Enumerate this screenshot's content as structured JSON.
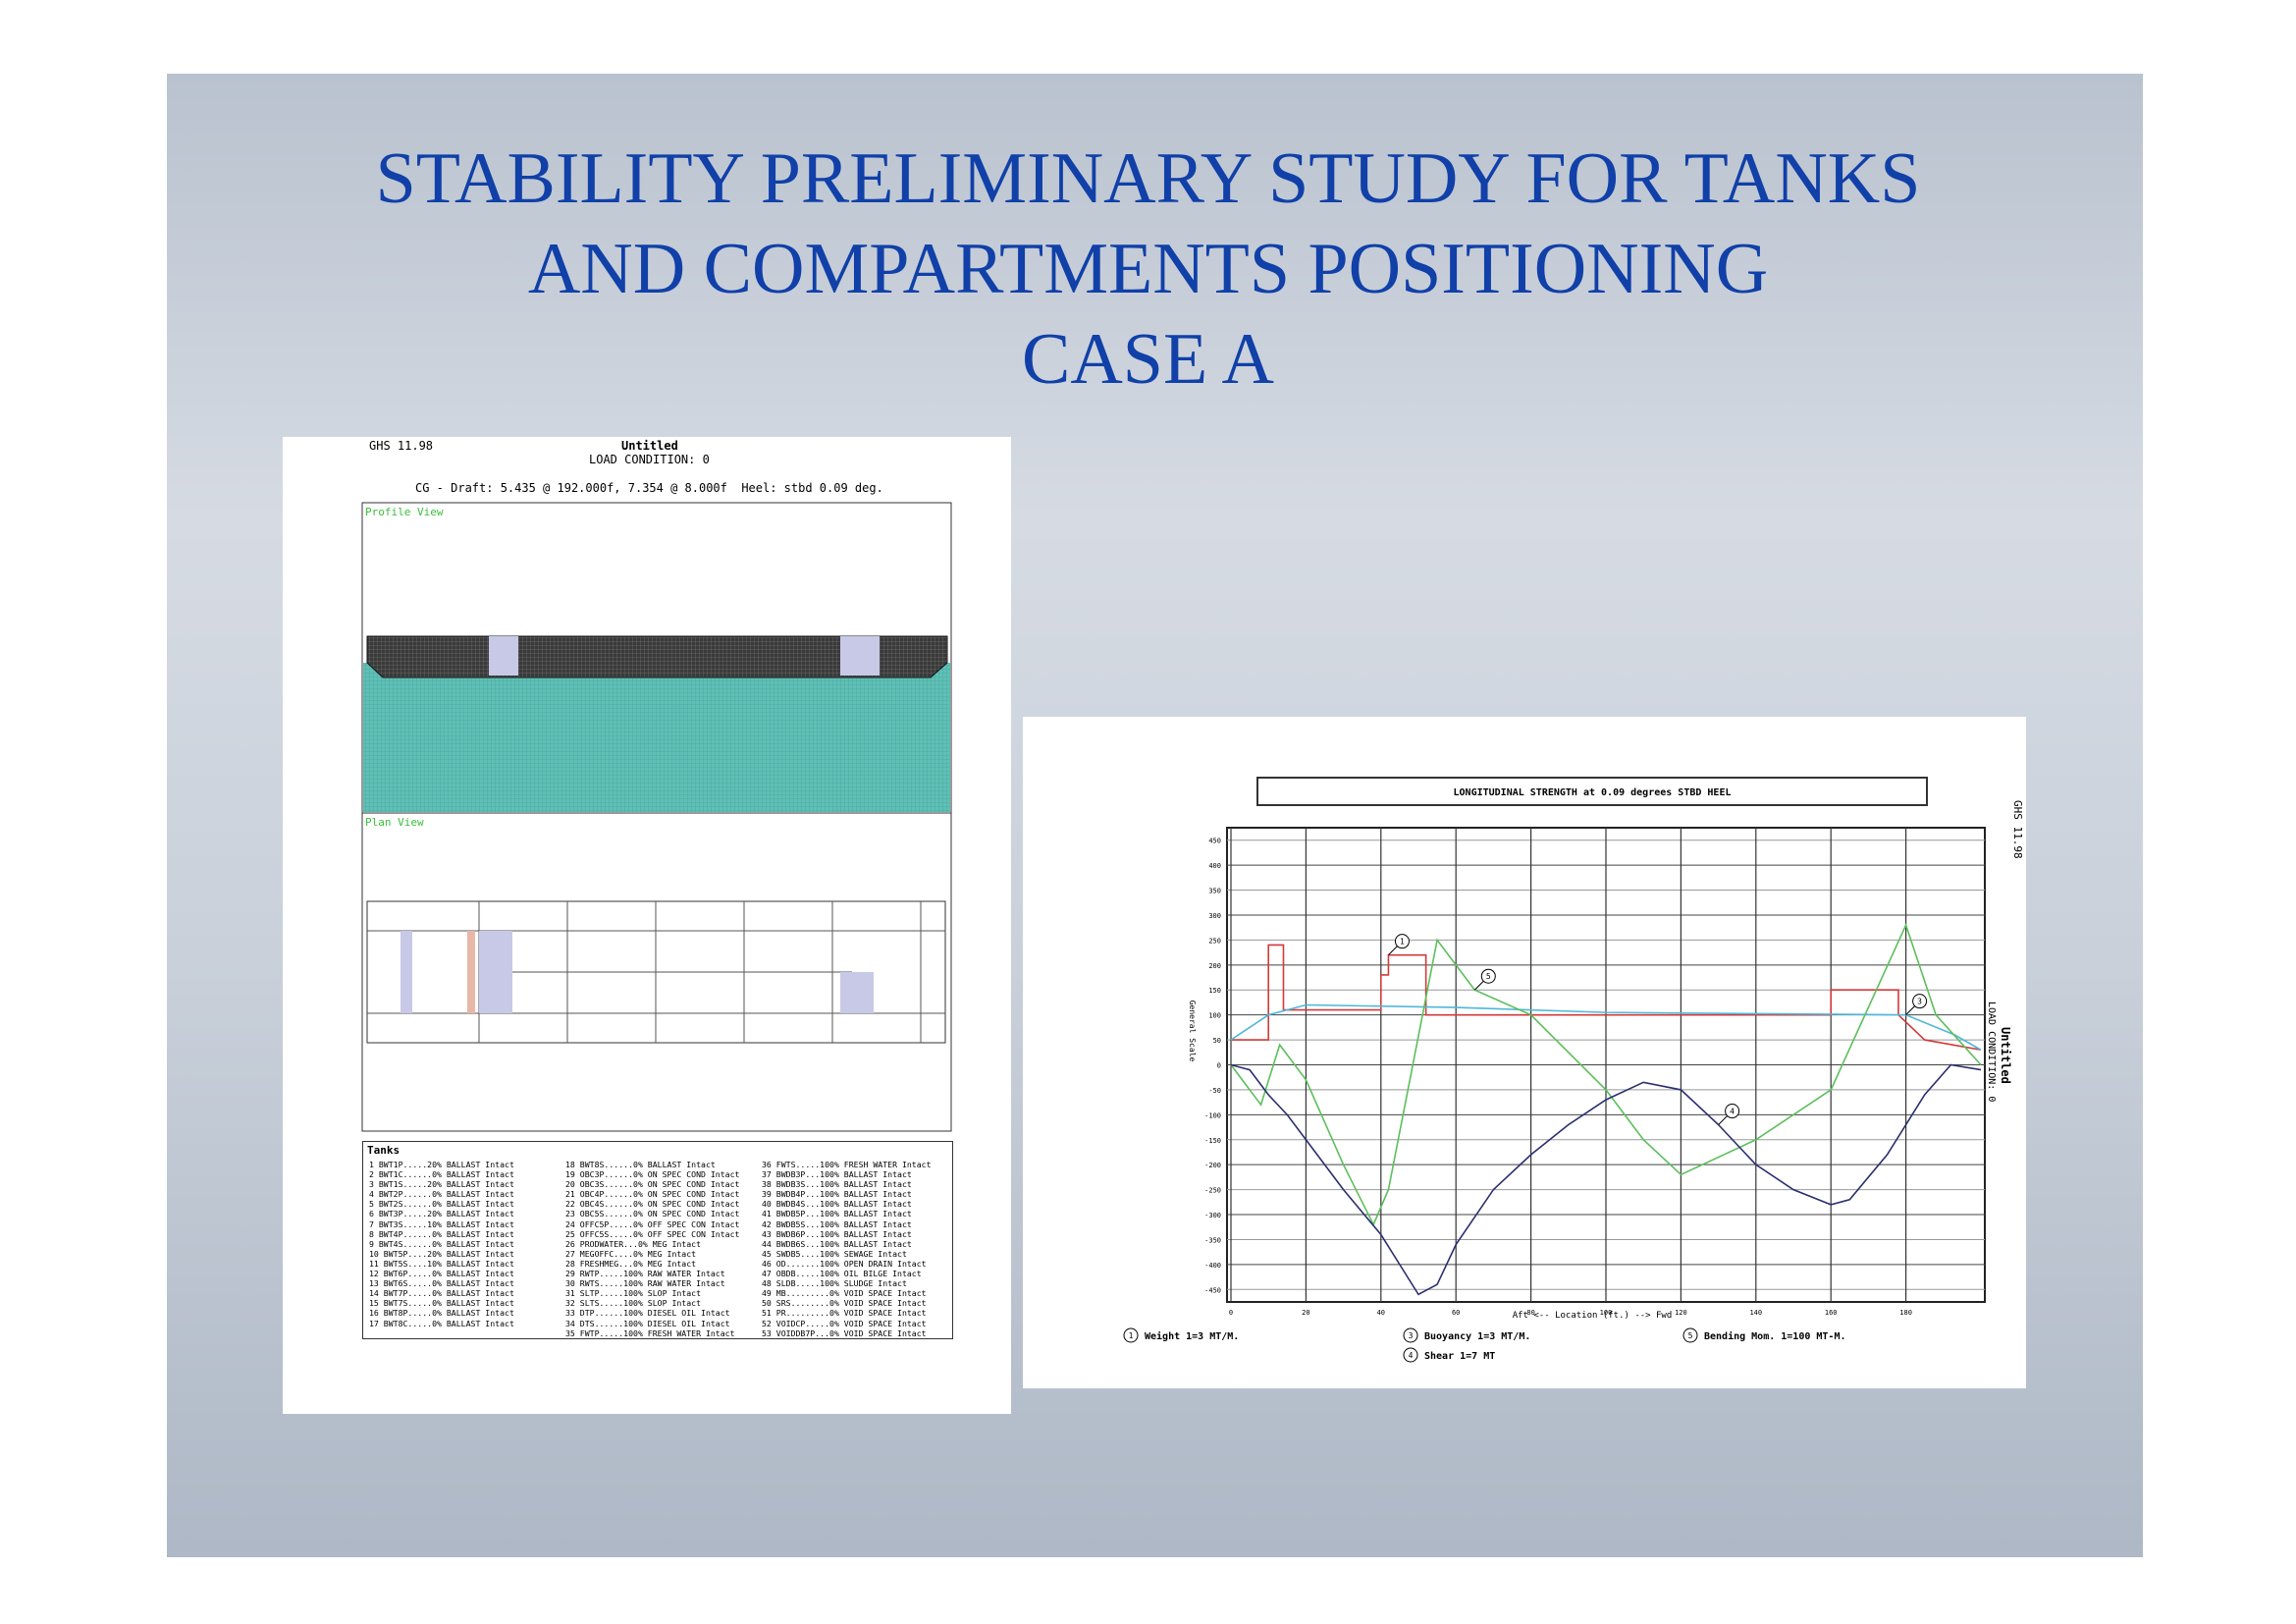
{
  "slide": {
    "title_lines": [
      "STABILITY PRELIMINARY STUDY FOR TANKS",
      "AND COMPARTMENTS  POSITIONING",
      "CASE A"
    ]
  },
  "left_panel": {
    "program": "GHS 11.98",
    "name": "Untitled",
    "condition": "LOAD CONDITION: 0",
    "cg_line": "CG - Draft: 5.435 @ 192.000f, 7.354 @ 8.000f  Heel: stbd 0.09 deg.",
    "profile_label": "Profile View",
    "plan_label": "Plan View",
    "tanks_heading": "Tanks",
    "tank_columns": [
      [
        "1 BWT1P.....20% BALLAST Intact",
        "2 BWT1C......0% BALLAST Intact",
        "3 BWT1S.....20% BALLAST Intact",
        "4 BWT2P......0% BALLAST Intact",
        "5 BWT2S......0% BALLAST Intact",
        "6 BWT3P.....20% BALLAST Intact",
        "7 BWT3S.....10% BALLAST Intact",
        "8 BWT4P......0% BALLAST Intact",
        "9 BWT4S......0% BALLAST Intact",
        "10 BWT5P....20% BALLAST Intact",
        "11 BWT5S....10% BALLAST Intact",
        "12 BWT6P.....0% BALLAST Intact",
        "13 BWT6S.....0% BALLAST Intact",
        "14 BWT7P.....0% BALLAST Intact",
        "15 BWT7S.....0% BALLAST Intact",
        "16 BWT8P.....0% BALLAST Intact",
        "17 BWT8C.....0% BALLAST Intact"
      ],
      [
        "18 BWT8S......0% BALLAST Intact",
        "19 OBC3P......0% ON SPEC COND Intact",
        "20 OBC3S......0% ON SPEC COND Intact",
        "21 OBC4P......0% ON SPEC COND Intact",
        "22 OBC4S......0% ON SPEC COND Intact",
        "23 OBC5S......0% ON SPEC COND Intact",
        "24 OFFC5P.....0% OFF SPEC CON Intact",
        "25 OFFC5S.....0% OFF SPEC CON Intact",
        "26 PRODWATER...0% MEG Intact",
        "27 MEGOFFC....0% MEG Intact",
        "28 FRESHMEG...0% MEG Intact",
        "29 RWTP.....100% RAW WATER Intact",
        "30 RWTS.....100% RAW WATER Intact",
        "31 SLTP.....100% SLOP Intact",
        "32 SLTS.....100% SLOP Intact",
        "33 DTP......100% DIESEL OIL Intact",
        "34 DTS......100% DIESEL OIL Intact",
        "35 FWTP.....100% FRESH WATER Intact"
      ],
      [
        "36 FWTS.....100% FRESH WATER Intact",
        "37 BWDB3P...100% BALLAST Intact",
        "38 BWDB3S...100% BALLAST Intact",
        "39 BWDB4P...100% BALLAST Intact",
        "40 BWDB4S...100% BALLAST Intact",
        "41 BWDB5P...100% BALLAST Intact",
        "42 BWDB5S...100% BALLAST Intact",
        "43 BWDB6P...100% BALLAST Intact",
        "44 BWDB6S...100% BALLAST Intact",
        "45 SWDB5....100% SEWAGE Intact",
        "46 OD.......100% OPEN DRAIN Intact",
        "47 OBDB.....100% OIL BILGE Intact",
        "48 SLDB.....100% SLUDGE Intact",
        "49 MB.........0% VOID SPACE Intact",
        "50 SRS........0% VOID SPACE Intact",
        "51 PR.........0% VOID SPACE Intact",
        "52 VOIDCP.....0% VOID SPACE Intact",
        "53 VOIDDB7P...0% VOID SPACE Intact"
      ]
    ]
  },
  "chart_data": {
    "type": "line",
    "title": "LONGITUDINAL STRENGTH at 0.09 degrees STBD HEEL",
    "program": "GHS 11.98",
    "name": "Untitled",
    "condition": "LOAD CONDITION: 0",
    "x_label": "Aft <-- Location (ft.) --> Fwd",
    "y_label": "General Scale",
    "xlim": [
      0,
      200
    ],
    "ylim": [
      -475,
      475
    ],
    "xticks": [
      0,
      20,
      40,
      60,
      80,
      100,
      120,
      140,
      160,
      180
    ],
    "yticks": [
      -450,
      -400,
      -350,
      -300,
      -250,
      -200,
      -150,
      -100,
      -50,
      0,
      50,
      100,
      150,
      200,
      250,
      300,
      350,
      400,
      450
    ],
    "grid": true,
    "series": [
      {
        "name": "Weight 1=3 MT/M.",
        "marker": "1",
        "color": "#d23a3a",
        "x": [
          0,
          10,
          10,
          14,
          14,
          40,
          40,
          42,
          42,
          52,
          52,
          100,
          160,
          160,
          178,
          178,
          185,
          200
        ],
        "values": [
          50,
          50,
          240,
          240,
          110,
          110,
          180,
          180,
          220,
          220,
          100,
          100,
          100,
          150,
          150,
          100,
          50,
          30
        ]
      },
      {
        "name": "Buoyancy 1=3 MT/M.",
        "marker": "3",
        "color": "#4fb8d8",
        "x": [
          0,
          10,
          20,
          60,
          100,
          180,
          193,
          200
        ],
        "values": [
          50,
          100,
          120,
          115,
          105,
          100,
          60,
          30
        ]
      },
      {
        "name": "Bending Mom. 1=100 MT-M.",
        "marker": "5",
        "color": "#5cbf5c",
        "x": [
          0,
          8,
          13,
          20,
          30,
          38,
          42,
          55,
          65,
          80,
          100,
          110,
          120,
          140,
          160,
          180,
          188,
          200
        ],
        "values": [
          0,
          -80,
          40,
          -30,
          -200,
          -320,
          -250,
          250,
          150,
          100,
          -50,
          -150,
          -220,
          -150,
          -50,
          280,
          100,
          0
        ]
      },
      {
        "name": "Shear 1=7 MT",
        "marker": "4",
        "color": "#2a2f6e",
        "x": [
          0,
          5,
          10,
          15,
          20,
          30,
          40,
          45,
          50,
          55,
          60,
          70,
          80,
          90,
          100,
          110,
          120,
          130,
          140,
          150,
          160,
          165,
          175,
          185,
          192,
          200
        ],
        "values": [
          0,
          -10,
          -60,
          -100,
          -150,
          -250,
          -340,
          -400,
          -460,
          -440,
          -360,
          -250,
          -180,
          -120,
          -70,
          -35,
          -50,
          -120,
          -200,
          -250,
          -280,
          -270,
          -180,
          -60,
          0,
          -10
        ]
      }
    ]
  }
}
